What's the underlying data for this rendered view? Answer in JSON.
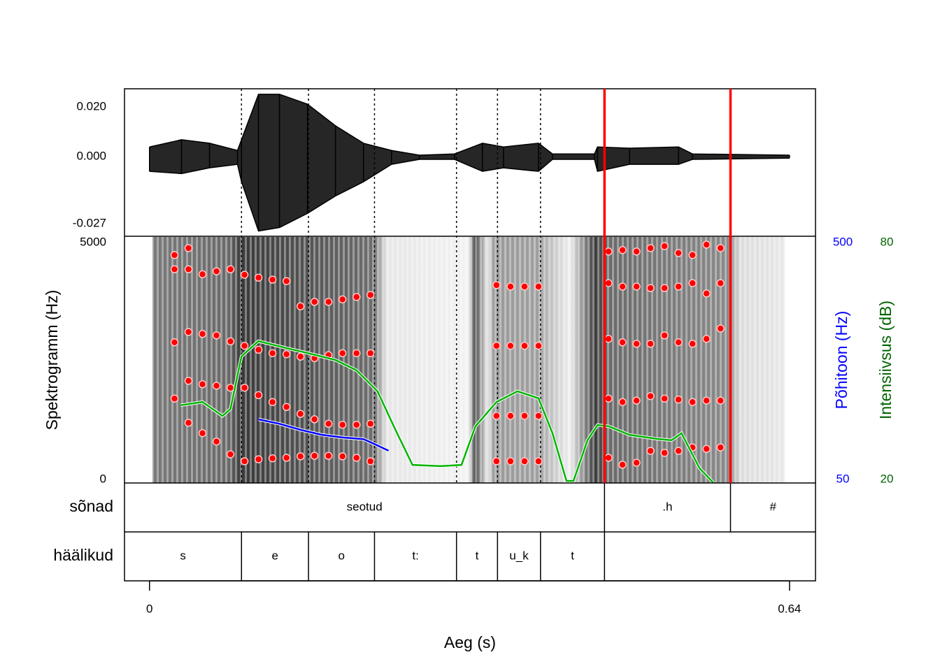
{
  "chart_data": {
    "type": "speech",
    "xlabel": "Aeg (s)",
    "xlim": [
      -0.025,
      0.666
    ],
    "xticks": [
      0,
      0.64
    ],
    "waveform": {
      "color": "#000000",
      "x": [
        0,
        0.032,
        0.06,
        0.088,
        0.092,
        0.109,
        0.13,
        0.158,
        0.186,
        0.214,
        0.242,
        0.27,
        0.305,
        0.333,
        0.354,
        0.389,
        0.403,
        0.445,
        0.448,
        0.48,
        0.529,
        0.543,
        0.64
      ],
      "upper": [
        0.0039,
        0.0068,
        0.0054,
        0.0025,
        0.0068,
        0.0251,
        0.0251,
        0.0211,
        0.0124,
        0.0054,
        0.0025,
        0.0006,
        0.0011,
        0.0054,
        0.0039,
        0.0054,
        0.0011,
        0.0011,
        0.0039,
        0.0034,
        0.0039,
        0.0011,
        0.0006
      ],
      "lower": [
        -0.0059,
        -0.0068,
        -0.0045,
        -0.0031,
        -0.0101,
        -0.0299,
        -0.0285,
        -0.0228,
        -0.0158,
        -0.0101,
        -0.0031,
        -0.0011,
        -0.0011,
        -0.0059,
        -0.0045,
        -0.0059,
        -0.0011,
        -0.0011,
        -0.0059,
        -0.0031,
        -0.0031,
        -0.0011,
        -0.0006
      ],
      "ylim": [
        -0.032,
        0.0273
      ],
      "yticks": [
        {
          "value": 0.02,
          "label": "0.020"
        },
        {
          "value": 0,
          "label": "0.000"
        },
        {
          "value": -0.027,
          "label": "-0.027"
        }
      ]
    },
    "spectrogram": {
      "ylabel": "Spektrogramm (Hz)",
      "ylim": [
        0,
        5000
      ],
      "yticks": [
        0,
        5000
      ],
      "formant_color": "#ff0000",
      "x": [
        0.025,
        0.039,
        0.053,
        0.067,
        0.081,
        0.095,
        0.109,
        0.123,
        0.137,
        0.151,
        0.165,
        0.179,
        0.193,
        0.207,
        0.221,
        0.235,
        0.249,
        0.263,
        0.277,
        0.291,
        0.305,
        0.319,
        0.333,
        0.347,
        0.361,
        0.375,
        0.389,
        0.403,
        0.417,
        0.431,
        0.445,
        0.459,
        0.473,
        0.487,
        0.501,
        0.515,
        0.529,
        0.543,
        0.557,
        0.571
      ],
      "formants": [
        [
          1710,
          1220,
          1010,
          840,
          580,
          440,
          480,
          500,
          510,
          540,
          550,
          550,
          540,
          510,
          440,
          null,
          null,
          null,
          null,
          null,
          null,
          null,
          null,
          440,
          440,
          440,
          440,
          null,
          null,
          null,
          null,
          510,
          370,
          410,
          650,
          610,
          650,
          720,
          690,
          720
        ],
        [
          null,
          2070,
          2000,
          1970,
          1930,
          1930,
          1780,
          1640,
          1540,
          1400,
          1290,
          1200,
          1180,
          1180,
          1200,
          null,
          null,
          null,
          null,
          null,
          null,
          null,
          null,
          1360,
          1360,
          1360,
          1360,
          null,
          null,
          null,
          null,
          1710,
          1640,
          1670,
          1760,
          1710,
          1690,
          1640,
          1670,
          1670
        ],
        [
          2850,
          3060,
          3020,
          2990,
          2870,
          2780,
          2700,
          2630,
          2610,
          2560,
          2530,
          2590,
          2630,
          2630,
          2630,
          null,
          null,
          null,
          null,
          null,
          null,
          null,
          null,
          2780,
          2780,
          2780,
          2780,
          null,
          null,
          null,
          null,
          2920,
          2850,
          2820,
          2820,
          2990,
          2850,
          2820,
          2920,
          3130
        ],
        [
          4330,
          4330,
          4230,
          4290,
          4330,
          4220,
          4160,
          4120,
          4090,
          3580,
          3670,
          3670,
          3720,
          3770,
          3810,
          null,
          null,
          null,
          null,
          null,
          null,
          null,
          null,
          4010,
          3980,
          3980,
          3980,
          null,
          null,
          null,
          null,
          4050,
          3980,
          3980,
          3950,
          3950,
          3980,
          4050,
          3840,
          4050
        ],
        [
          4620,
          4760,
          null,
          null,
          null,
          null,
          null,
          null,
          null,
          null,
          null,
          null,
          null,
          null,
          null,
          null,
          null,
          null,
          null,
          null,
          null,
          null,
          null,
          null,
          null,
          null,
          null,
          null,
          null,
          null,
          null,
          4690,
          4720,
          4690,
          4760,
          4800,
          4660,
          4620,
          4830,
          4760
        ]
      ]
    },
    "pitch": {
      "ylabel": "Põhitoon (Hz)",
      "color": "#0000ff",
      "ylim": [
        50,
        500
      ],
      "yticks": [
        50,
        500
      ],
      "x": [
        0.109,
        0.13,
        0.151,
        0.172,
        0.193,
        0.214,
        0.225,
        0.239
      ],
      "values": [
        166,
        158,
        147,
        138,
        133,
        130,
        121,
        109
      ]
    },
    "intensity": {
      "ylabel": "Intensiivsus (dB)",
      "color": "#00b400",
      "label_color": "#006400",
      "ylim": [
        20,
        80
      ],
      "yticks": [
        20,
        80
      ],
      "x": [
        0.031,
        0.053,
        0.073,
        0.081,
        0.092,
        0.109,
        0.137,
        0.158,
        0.186,
        0.207,
        0.228,
        0.246,
        0.263,
        0.291,
        0.312,
        0.326,
        0.347,
        0.368,
        0.389,
        0.403,
        0.417,
        0.424,
        0.438,
        0.448,
        0.459,
        0.48,
        0.508,
        0.522,
        0.532,
        0.55,
        0.564
      ],
      "values": [
        38.9,
        39.7,
        36.3,
        38.0,
        50.8,
        54.5,
        52.8,
        51.6,
        49.9,
        47.4,
        42.3,
        32.9,
        24.4,
        24.1,
        24.4,
        33.8,
        39.7,
        42.3,
        40.6,
        32.1,
        20.5,
        20.5,
        30.4,
        34.1,
        33.8,
        31.7,
        30.7,
        30.4,
        32.1,
        23.6,
        20.0
      ]
    },
    "tiers": [
      {
        "name": "sõnad",
        "intervals": [
          {
            "start": -0.025,
            "end": 0.455,
            "text": "seotud"
          },
          {
            "start": 0.455,
            "end": 0.581,
            "text": ".h"
          },
          {
            "start": 0.581,
            "end": 0.666,
            "text": "#"
          }
        ]
      },
      {
        "name": "häälikud",
        "intervals": [
          {
            "start": -0.025,
            "end": 0.092,
            "text": "s"
          },
          {
            "start": 0.092,
            "end": 0.159,
            "text": "e"
          },
          {
            "start": 0.159,
            "end": 0.225,
            "text": "o"
          },
          {
            "start": 0.225,
            "end": 0.307,
            "text": "t:"
          },
          {
            "start": 0.307,
            "end": 0.348,
            "text": "t"
          },
          {
            "start": 0.348,
            "end": 0.391,
            "text": "u_k"
          },
          {
            "start": 0.391,
            "end": 0.455,
            "text": "t"
          },
          {
            "start": 0.455,
            "end": 0.666,
            "text": null
          }
        ]
      }
    ],
    "selection": {
      "color": "#ff0000",
      "times": [
        0.455,
        0.581
      ]
    }
  }
}
